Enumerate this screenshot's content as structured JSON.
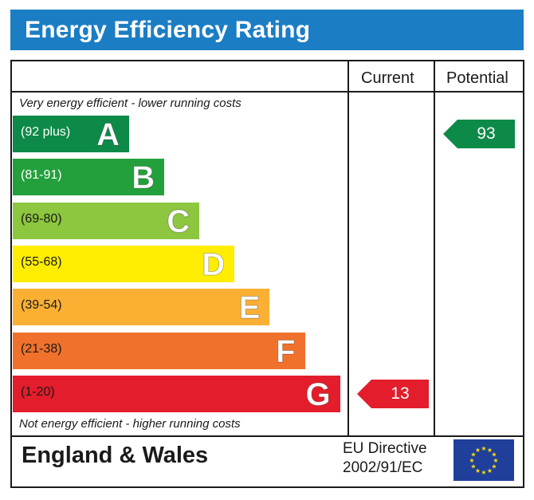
{
  "title": "Energy Efficiency Rating",
  "columns": {
    "current": "Current",
    "potential": "Potential"
  },
  "top_note": "Very energy efficient - lower running costs",
  "bottom_note": "Not energy efficient - higher running costs",
  "footer": {
    "country": "England & Wales",
    "directive_line1": "EU Directive",
    "directive_line2": "2002/91/EC",
    "flag_icon": "eu-flag-icon"
  },
  "chart_data": {
    "type": "bar",
    "categories": [
      "A",
      "B",
      "C",
      "D",
      "E",
      "F",
      "G"
    ],
    "ranges": [
      "(92 plus)",
      "(81-91)",
      "(69-80)",
      "(55-68)",
      "(39-54)",
      "(21-38)",
      "(1-20)"
    ],
    "colors": [
      "#0d8a48",
      "#23a03c",
      "#8dc63f",
      "#ffed00",
      "#fbb034",
      "#f0712b",
      "#e31d2b"
    ],
    "range_text_colors": [
      "#ffffff",
      "#ffffff",
      "#1a1a1a",
      "#1a1a1a",
      "#1a1a1a",
      "#1a1a1a",
      "#1a1a1a"
    ],
    "current": {
      "value": 13,
      "band": "G",
      "color": "#e31d2b"
    },
    "potential": {
      "value": 93,
      "band": "A",
      "color": "#0d8a48"
    }
  }
}
